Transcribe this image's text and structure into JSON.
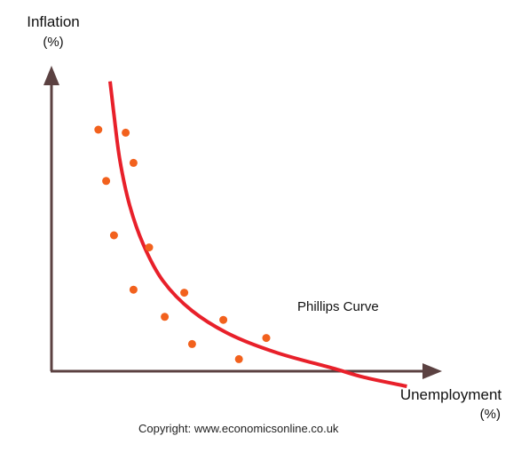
{
  "y_axis": {
    "label": "Inflation",
    "unit": "(%)"
  },
  "x_axis": {
    "label": "Unemployment",
    "unit": "(%)"
  },
  "curve_label": "Phillips Curve",
  "copyright": "Copyright: www.economicsonline.co.uk",
  "colors": {
    "axis": "#5b4141",
    "curve": "#e8202a",
    "points": "#f2611d",
    "text": "#111111"
  },
  "chart_data": {
    "type": "scatter",
    "x_range": [
      0,
      10
    ],
    "y_range": [
      0,
      10
    ],
    "points": [
      {
        "x": 1.2,
        "y": 8.0
      },
      {
        "x": 1.9,
        "y": 7.9
      },
      {
        "x": 2.1,
        "y": 6.9
      },
      {
        "x": 1.4,
        "y": 6.3
      },
      {
        "x": 1.6,
        "y": 4.5
      },
      {
        "x": 2.5,
        "y": 4.1
      },
      {
        "x": 2.1,
        "y": 2.7
      },
      {
        "x": 3.4,
        "y": 2.6
      },
      {
        "x": 2.9,
        "y": 1.8
      },
      {
        "x": 4.4,
        "y": 1.7
      },
      {
        "x": 3.6,
        "y": 0.9
      },
      {
        "x": 5.5,
        "y": 1.1
      },
      {
        "x": 4.8,
        "y": 0.4
      }
    ],
    "curve": [
      {
        "x": 1.5,
        "y": 9.6
      },
      {
        "x": 1.6,
        "y": 8.5
      },
      {
        "x": 1.75,
        "y": 7.0
      },
      {
        "x": 2.0,
        "y": 5.5
      },
      {
        "x": 2.35,
        "y": 4.2
      },
      {
        "x": 2.85,
        "y": 3.0
      },
      {
        "x": 3.6,
        "y": 2.0
      },
      {
        "x": 4.6,
        "y": 1.2
      },
      {
        "x": 5.8,
        "y": 0.6
      },
      {
        "x": 7.2,
        "y": 0.1
      },
      {
        "x": 8.0,
        "y": -0.2
      },
      {
        "x": 9.1,
        "y": -0.5
      }
    ]
  }
}
